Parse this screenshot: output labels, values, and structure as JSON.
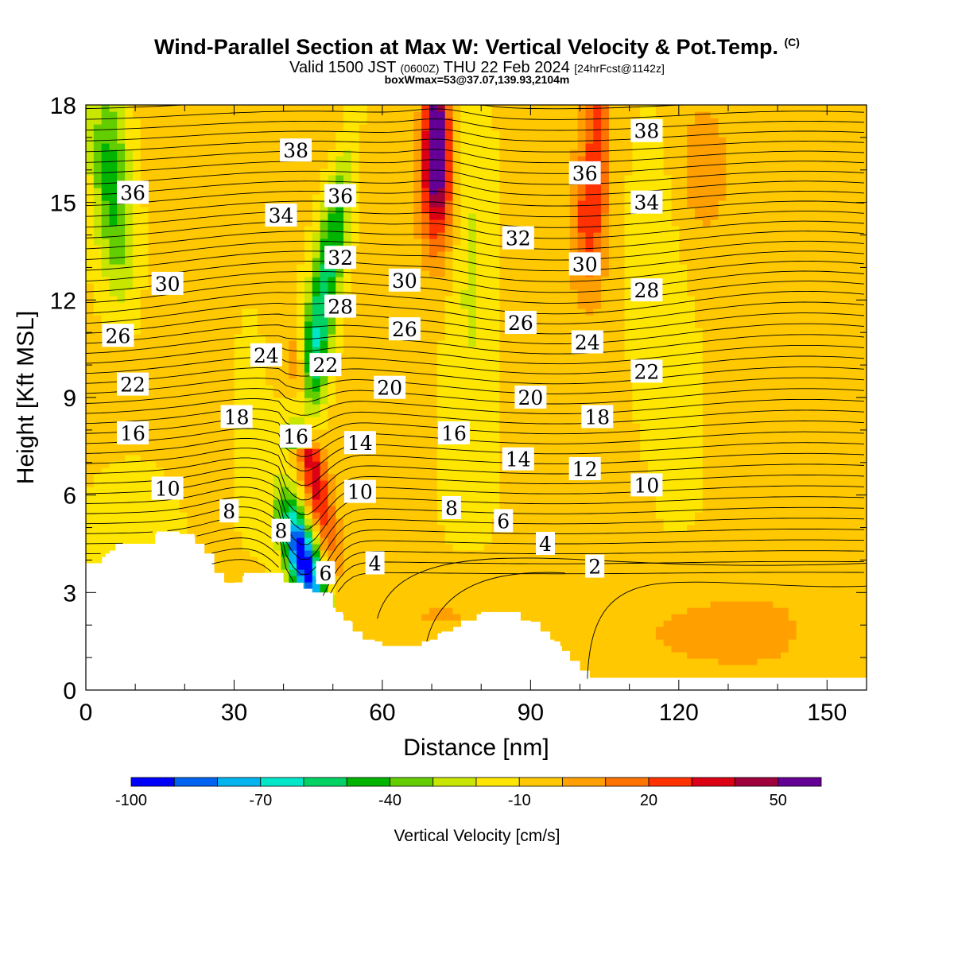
{
  "title": {
    "main": "Wind-Parallel Section at Max W: Vertical Velocity & Pot.Temp.",
    "copyright": "(C)",
    "valid_prefix": "Valid 1500 JST",
    "valid_utc": "(0600Z)",
    "valid_date": "THU 22 Feb 2024",
    "forecast": "[24hrFcst@1142z]",
    "box": "boxWmax=53@37.07,139.93,2104m"
  },
  "chart_data": {
    "type": "heatmap",
    "title": "Wind-Parallel Section at Max W: Vertical Velocity & Pot.Temp.",
    "xlabel": "Distance [nm]",
    "ylabel": "Height [Kft MSL]",
    "xlim": [
      0,
      158
    ],
    "ylim": [
      0,
      18
    ],
    "xticks": [
      0,
      30,
      60,
      90,
      120,
      150
    ],
    "yticks": [
      0,
      3,
      6,
      9,
      12,
      15,
      18
    ],
    "grid": false,
    "colorbar": {
      "label": "Vertical Velocity [cm/s]",
      "tick_labels": [
        "-100",
        "-70",
        "-40",
        "-10",
        "20",
        "50"
      ],
      "tick_values": [
        -100,
        -70,
        -40,
        -10,
        20,
        50
      ],
      "range": [
        -100,
        60
      ],
      "colors": [
        "#0000ff",
        "#0064f0",
        "#00b4f0",
        "#00e6c8",
        "#00d264",
        "#00b400",
        "#64cd00",
        "#c8e600",
        "#ffe600",
        "#ffc800",
        "#ffa000",
        "#ff7300",
        "#ff3200",
        "#dc0014",
        "#a0003c",
        "#640096"
      ]
    },
    "theta_labels": [
      {
        "text": "38",
        "x": 42.5,
        "y": 16.6
      },
      {
        "text": "36",
        "x": 9.5,
        "y": 15.3
      },
      {
        "text": "36",
        "x": 51.5,
        "y": 15.2
      },
      {
        "text": "34",
        "x": 39.5,
        "y": 14.6
      },
      {
        "text": "32",
        "x": 51.5,
        "y": 13.3
      },
      {
        "text": "30",
        "x": 16.5,
        "y": 12.5
      },
      {
        "text": "28",
        "x": 51.5,
        "y": 11.8
      },
      {
        "text": "26",
        "x": 6.5,
        "y": 10.9
      },
      {
        "text": "24",
        "x": 36.5,
        "y": 10.3
      },
      {
        "text": "22",
        "x": 9.5,
        "y": 9.4
      },
      {
        "text": "22",
        "x": 48.5,
        "y": 10.0
      },
      {
        "text": "18",
        "x": 30.5,
        "y": 8.4
      },
      {
        "text": "16",
        "x": 9.5,
        "y": 7.9
      },
      {
        "text": "16",
        "x": 42.5,
        "y": 7.8
      },
      {
        "text": "14",
        "x": 55.5,
        "y": 7.6
      },
      {
        "text": "10",
        "x": 16.5,
        "y": 6.2
      },
      {
        "text": "10",
        "x": 55.5,
        "y": 6.1
      },
      {
        "text": "8",
        "x": 29,
        "y": 5.5
      },
      {
        "text": "8",
        "x": 39.5,
        "y": 4.9
      },
      {
        "text": "6",
        "x": 48.5,
        "y": 3.6
      },
      {
        "text": "4",
        "x": 58.5,
        "y": 3.9
      },
      {
        "text": "38",
        "x": 113.5,
        "y": 17.2
      },
      {
        "text": "36",
        "x": 101,
        "y": 15.9
      },
      {
        "text": "34",
        "x": 113.5,
        "y": 15.0
      },
      {
        "text": "32",
        "x": 87.5,
        "y": 13.9
      },
      {
        "text": "30",
        "x": 64.5,
        "y": 12.6
      },
      {
        "text": "30",
        "x": 101,
        "y": 13.1
      },
      {
        "text": "28",
        "x": 113.5,
        "y": 12.3
      },
      {
        "text": "26",
        "x": 64.5,
        "y": 11.1
      },
      {
        "text": "26",
        "x": 88,
        "y": 11.3
      },
      {
        "text": "24",
        "x": 101.5,
        "y": 10.7
      },
      {
        "text": "22",
        "x": 113.5,
        "y": 9.8
      },
      {
        "text": "20",
        "x": 61.5,
        "y": 9.3
      },
      {
        "text": "20",
        "x": 90,
        "y": 9.0
      },
      {
        "text": "18",
        "x": 103.5,
        "y": 8.4
      },
      {
        "text": "16",
        "x": 74.5,
        "y": 7.9
      },
      {
        "text": "14",
        "x": 87.5,
        "y": 7.1
      },
      {
        "text": "12",
        "x": 101,
        "y": 6.8
      },
      {
        "text": "10",
        "x": 113.5,
        "y": 6.3
      },
      {
        "text": "8",
        "x": 74,
        "y": 5.6
      },
      {
        "text": "6",
        "x": 84.5,
        "y": 5.2
      },
      {
        "text": "4",
        "x": 93,
        "y": 4.5
      },
      {
        "text": "2",
        "x": 103,
        "y": 3.8
      }
    ]
  }
}
